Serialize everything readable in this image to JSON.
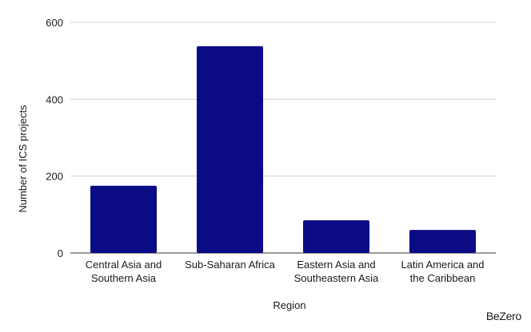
{
  "chart_data": {
    "type": "bar",
    "title": "",
    "xlabel": "Region",
    "ylabel": "Number of ICS projects",
    "categories": [
      [
        "Central Asia and",
        "Southern Asia"
      ],
      [
        "Sub-Saharan Africa"
      ],
      [
        "Eastern Asia and",
        "Southeastern Asia"
      ],
      [
        "Latin America and",
        "the Caribbean"
      ]
    ],
    "values": [
      175,
      538,
      85,
      60
    ],
    "ylim": [
      0,
      600
    ],
    "yticks": [
      0,
      200,
      400,
      600
    ],
    "grid": true,
    "bar_color": "#0b0b86",
    "grid_color": "#d0d0d0"
  },
  "brand": "BeZero"
}
